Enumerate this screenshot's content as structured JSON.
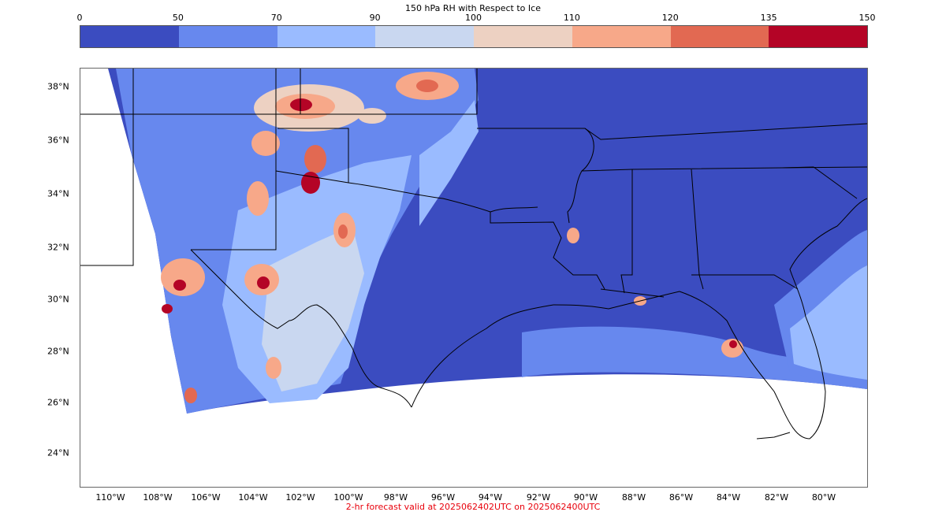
{
  "colorbar": {
    "title": "150 hPa RH with Respect to Ice",
    "ticks": [
      "0",
      "50",
      "70",
      "90",
      "100",
      "110",
      "120",
      "135",
      "150"
    ],
    "colors": [
      "#3b4cc0",
      "#6788ee",
      "#9abbff",
      "#c9d7f0",
      "#edd1c2",
      "#f7a889",
      "#e26952",
      "#b40426"
    ]
  },
  "axes": {
    "lat_labels": [
      "38°N",
      "36°N",
      "34°N",
      "32°N",
      "30°N",
      "28°N",
      "26°N",
      "24°N"
    ],
    "lon_labels": [
      "110°W",
      "108°W",
      "106°W",
      "104°W",
      "102°W",
      "100°W",
      "98°W",
      "96°W",
      "94°W",
      "92°W",
      "90°W",
      "88°W",
      "86°W",
      "84°W",
      "82°W",
      "80°W"
    ]
  },
  "footer": "2-hr forecast valid at 2025062402UTC on 2025062400UTC"
}
